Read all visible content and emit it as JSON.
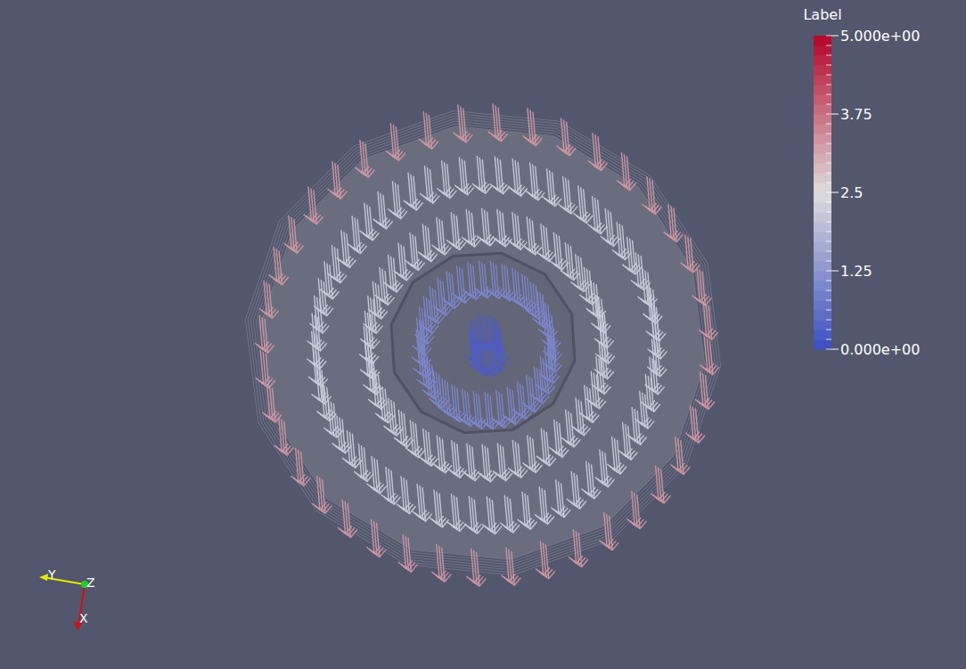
{
  "chart_data": {
    "type": "glyph",
    "colorbar": {
      "title": "Label",
      "range": [
        0,
        5
      ],
      "ticks": [
        {
          "value": 0,
          "label": "0.000e+00"
        },
        1.25,
        2.5,
        3.75,
        {
          "value": 5,
          "label": "5.000e+00"
        }
      ]
    },
    "rings": [
      {
        "value": 0.3,
        "count": 10
      },
      {
        "value": 1.0,
        "count": 36
      },
      {
        "value": 2.2,
        "count": 48
      },
      {
        "value": 2.2,
        "count": 60
      },
      {
        "value": 3.3,
        "count": 40
      }
    ],
    "orientation_axes": [
      "Y",
      "Z",
      "X"
    ]
  }
}
